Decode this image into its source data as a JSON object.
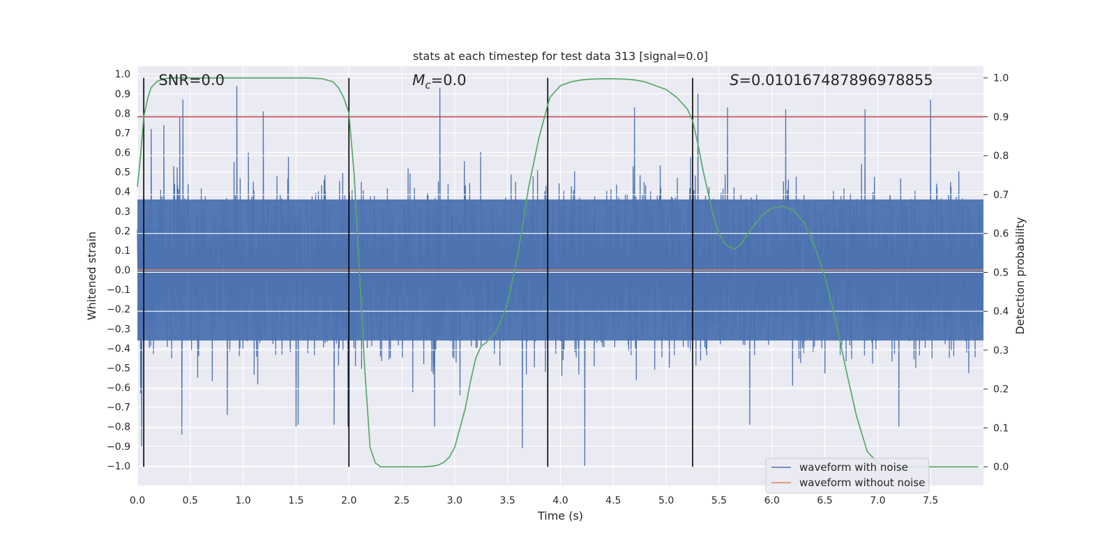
{
  "chart_data": {
    "type": "line",
    "title": "stats at each timestep for test data 313 [signal=0.0]",
    "xlabel": "Time (s)",
    "ylabel_left": "Whitened strain",
    "ylabel_right": "Detection probability",
    "xlim": [
      0.0,
      8.0
    ],
    "ylim_left": [
      -1.1,
      1.04
    ],
    "ylim_right": [
      -0.048,
      1.03
    ],
    "xticks": [
      0.0,
      0.5,
      1.0,
      1.5,
      2.0,
      2.5,
      3.0,
      3.5,
      4.0,
      4.5,
      5.0,
      5.5,
      6.0,
      6.5,
      7.0,
      7.5
    ],
    "xtick_labels": [
      "0.0",
      "0.5",
      "1.0",
      "1.5",
      "2.0",
      "2.5",
      "3.0",
      "3.5",
      "4.0",
      "4.5",
      "5.0",
      "5.5",
      "6.0",
      "6.5",
      "7.0",
      "7.5"
    ],
    "yticks_left": [
      1.0,
      0.9,
      0.8,
      0.7,
      0.6,
      0.5,
      0.4,
      0.3,
      0.2,
      0.1,
      0.0,
      -0.1,
      -0.2,
      -0.3,
      -0.4,
      -0.5,
      -0.6,
      -0.7,
      -0.8,
      -0.9,
      -1.0
    ],
    "ytick_labels_left": [
      "1.0",
      "0.9",
      "0.8",
      "0.7",
      "0.6",
      "0.5",
      "0.4",
      "0.3",
      "0.2",
      "0.1",
      "0.0",
      "−0.1",
      "−0.2",
      "−0.3",
      "−0.4",
      "−0.5",
      "−0.6",
      "−0.7",
      "−0.8",
      "−0.9",
      "−1.0"
    ],
    "yticks_right": [
      1.0,
      0.9,
      0.8,
      0.7,
      0.6,
      0.5,
      0.4,
      0.3,
      0.2,
      0.1,
      0.0
    ],
    "ytick_labels_right": [
      "1.0",
      "0.9",
      "0.8",
      "0.7",
      "0.6",
      "0.5",
      "0.4",
      "0.3",
      "0.2",
      "0.1",
      "0.0"
    ],
    "threshold": 0.9,
    "threshold_color": "#c44e52",
    "vertical_markers": [
      0.06,
      2.0,
      3.88,
      5.25
    ],
    "annotations": [
      {
        "prefix": "SNR",
        "italic_sub": "",
        "text": "=0.0",
        "x": 0.2
      },
      {
        "prefix": "M",
        "italic_sub": "c",
        "text": "=0.0",
        "x": 2.6
      },
      {
        "prefix": "S",
        "italic_sub": "",
        "text": "=0.010167487896978855",
        "x": 5.6
      }
    ],
    "series": [
      {
        "name": "waveform with noise",
        "color": "#4c72b0",
        "axis": "left",
        "description": "whitened noise, approx. range -1.0 to 0.95",
        "peaks": [
          [
            0.03,
            -0.63
          ],
          [
            0.04,
            -0.9
          ],
          [
            0.13,
            0.72
          ],
          [
            0.25,
            0.74
          ],
          [
            0.4,
            0.78
          ],
          [
            0.42,
            -0.84
          ],
          [
            0.43,
            0.87
          ],
          [
            0.85,
            -0.74
          ],
          [
            0.94,
            0.94
          ],
          [
            1.19,
            0.81
          ],
          [
            1.5,
            -0.8
          ],
          [
            1.52,
            -0.79
          ],
          [
            1.86,
            -0.79
          ],
          [
            1.99,
            -0.8
          ],
          [
            2.81,
            -0.8
          ],
          [
            2.86,
            0.93
          ],
          [
            3.05,
            -0.64
          ],
          [
            3.88,
            -0.8
          ],
          [
            3.64,
            -0.91
          ],
          [
            4.23,
            -1.0
          ],
          [
            4.7,
            0.83
          ],
          [
            5.3,
            0.9
          ],
          [
            5.58,
            0.83
          ],
          [
            5.79,
            -0.79
          ],
          [
            6.13,
            0.82
          ],
          [
            6.88,
            0.82
          ],
          [
            7.2,
            -0.8
          ],
          [
            7.5,
            0.87
          ],
          [
            7.36,
            -0.5
          ]
        ]
      },
      {
        "name": "waveform without noise",
        "color": "#dd8452",
        "axis": "left",
        "x": [
          0.0,
          8.0
        ],
        "values": [
          0.0,
          0.0
        ]
      },
      {
        "name": "detection probability",
        "color": "#55a868",
        "axis": "right",
        "x": [
          0.0,
          0.03,
          0.06,
          0.1,
          0.13,
          0.18,
          0.25,
          0.32,
          0.4,
          0.6,
          0.8,
          1.0,
          1.2,
          1.4,
          1.6,
          1.75,
          1.85,
          1.9,
          1.95,
          2.0,
          2.05,
          2.1,
          2.15,
          2.2,
          2.25,
          2.3,
          2.4,
          2.5,
          2.6,
          2.7,
          2.8,
          2.85,
          2.9,
          2.95,
          3.0,
          3.05,
          3.1,
          3.15,
          3.2,
          3.25,
          3.3,
          3.4,
          3.5,
          3.6,
          3.7,
          3.8,
          3.85,
          3.9,
          4.0,
          4.1,
          4.2,
          4.3,
          4.4,
          4.5,
          4.6,
          4.7,
          4.8,
          4.9,
          5.0,
          5.1,
          5.2,
          5.25,
          5.3,
          5.35,
          5.4,
          5.45,
          5.5,
          5.55,
          5.6,
          5.65,
          5.7,
          5.75,
          5.8,
          5.9,
          6.0,
          6.1,
          6.2,
          6.3,
          6.4,
          6.5,
          6.6,
          6.7,
          6.8,
          6.9,
          7.0,
          7.05,
          7.1,
          7.2,
          7.3,
          7.5,
          7.7,
          7.95
        ],
        "values": [
          0.72,
          0.8,
          0.9,
          0.95,
          0.975,
          0.99,
          0.998,
          1.0,
          1.0,
          1.0,
          1.0,
          1.0,
          1.0,
          1.0,
          1.0,
          0.998,
          0.99,
          0.975,
          0.95,
          0.91,
          0.75,
          0.5,
          0.25,
          0.05,
          0.01,
          0.0,
          0.0,
          0.0,
          0.0,
          0.0,
          0.002,
          0.005,
          0.012,
          0.025,
          0.05,
          0.1,
          0.15,
          0.22,
          0.28,
          0.31,
          0.32,
          0.35,
          0.42,
          0.55,
          0.72,
          0.85,
          0.9,
          0.95,
          0.98,
          0.99,
          0.995,
          0.997,
          0.998,
          0.998,
          0.997,
          0.995,
          0.99,
          0.98,
          0.97,
          0.95,
          0.92,
          0.89,
          0.83,
          0.76,
          0.7,
          0.64,
          0.6,
          0.575,
          0.565,
          0.56,
          0.57,
          0.59,
          0.61,
          0.645,
          0.665,
          0.67,
          0.66,
          0.63,
          0.57,
          0.49,
          0.38,
          0.25,
          0.13,
          0.04,
          0.01,
          0.003,
          0.001,
          0.0,
          0.0,
          0.0,
          0.0,
          0.0
        ]
      }
    ],
    "legend": {
      "location": "lower-right",
      "entries": [
        {
          "label": "waveform with noise",
          "color": "#4c72b0"
        },
        {
          "label": "waveform without noise",
          "color": "#dd8452"
        }
      ]
    },
    "colors": {
      "plot_bg": "#eaeaf2",
      "grid": "#ffffff",
      "text": "#262626",
      "marker": "#000000"
    }
  }
}
